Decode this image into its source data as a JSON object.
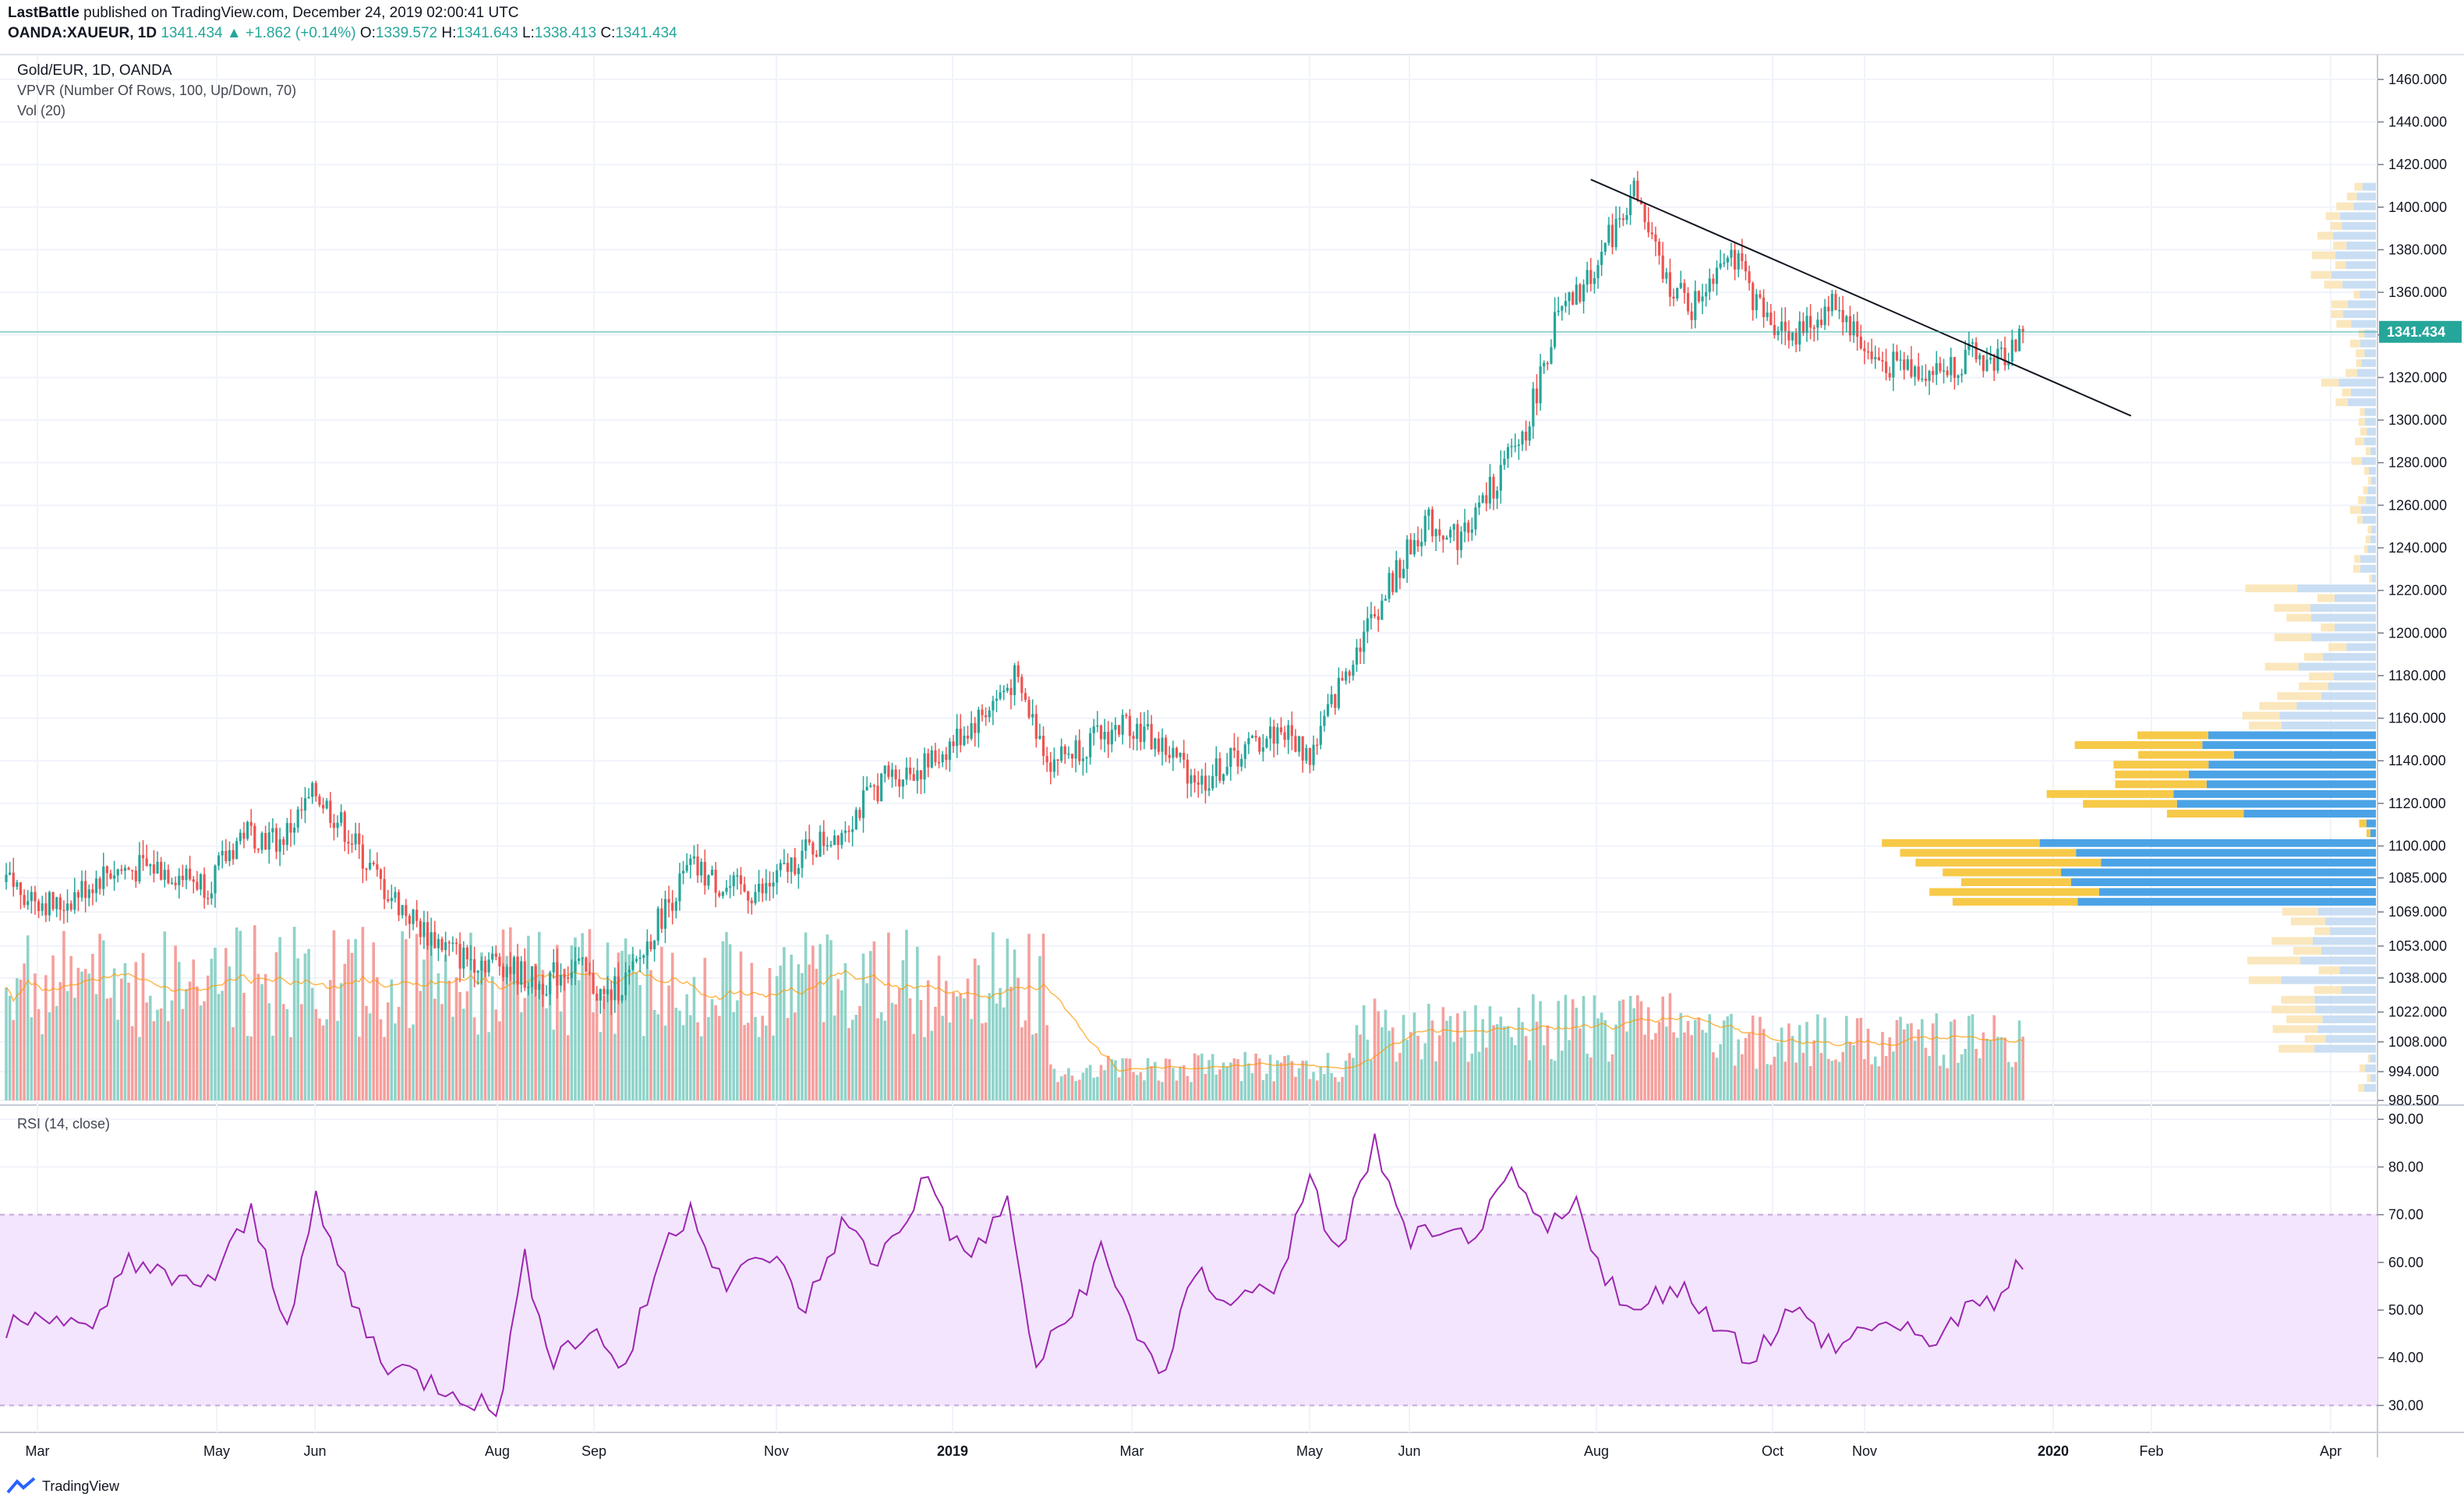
{
  "header": {
    "author": "LastBattle",
    "published_text": "published on TradingView.com, December 24, 2019 02:00:41 UTC",
    "symbol": "OANDA:XAUEUR, 1D",
    "last": "1341.434",
    "change": "▲ +1.862 (+0.14%)",
    "o_label": "O:",
    "o": "1339.572",
    "h_label": "H:",
    "h": "1341.643",
    "l_label": "L:",
    "l": "1338.413",
    "c_label": "C:",
    "c": "1341.434"
  },
  "legend": {
    "title": "Gold/EUR, 1D, OANDA",
    "vpvr": "VPVR (Number Of Rows, 100, Up/Down, 70)",
    "vol": "Vol (20)",
    "rsi": "RSI (14, close)"
  },
  "footer": {
    "brand": "TradingView"
  },
  "colors": {
    "up": "#26a69a",
    "down": "#ef5350",
    "vol_up": "#8fd3c9",
    "vol_down": "#f5a09d",
    "vpvr_up": "#4ba3e6",
    "vpvr_down": "#f7c948",
    "rsi": "#9c27b0",
    "rsi_band": "#f3e5fd",
    "price_line": "#26a69a"
  },
  "chart_data": {
    "type": "candlestick",
    "title": "Gold/EUR, 1D, OANDA",
    "price_axis": {
      "ylim": [
        980.5,
        1468
      ],
      "ticks": [
        "1460.000",
        "1440.000",
        "1420.000",
        "1400.000",
        "1380.000",
        "1360.000",
        "1340.000",
        "1320.000",
        "1300.000",
        "1280.000",
        "1260.000",
        "1240.000",
        "1220.000",
        "1200.000",
        "1180.000",
        "1160.000",
        "1140.000",
        "1120.000",
        "1100.000",
        "1085.000",
        "1069.000",
        "1053.000",
        "1038.000",
        "1022.000",
        "1008.000",
        "994.000",
        "980.500"
      ],
      "last_price_label": "1341.434",
      "last_price": 1341.434
    },
    "x_axis": {
      "labels": [
        "Mar",
        "May",
        "Jun",
        "Aug",
        "Sep",
        "Nov",
        "2019",
        "Mar",
        "May",
        "Jun",
        "Aug",
        "Oct",
        "Nov",
        "2020",
        "Feb",
        "Apr"
      ]
    },
    "price_path": [
      {
        "t": 0,
        "v": 1083
      },
      {
        "t": 14,
        "v": 1071
      },
      {
        "t": 28,
        "v": 1088
      },
      {
        "t": 42,
        "v": 1090
      },
      {
        "t": 56,
        "v": 1082
      },
      {
        "t": 66,
        "v": 1107
      },
      {
        "t": 76,
        "v": 1102
      },
      {
        "t": 86,
        "v": 1125
      },
      {
        "t": 94,
        "v": 1108
      },
      {
        "t": 104,
        "v": 1082
      },
      {
        "t": 116,
        "v": 1060
      },
      {
        "t": 126,
        "v": 1048
      },
      {
        "t": 138,
        "v": 1045
      },
      {
        "t": 148,
        "v": 1035
      },
      {
        "t": 158,
        "v": 1045
      },
      {
        "t": 166,
        "v": 1028
      },
      {
        "t": 174,
        "v": 1040
      },
      {
        "t": 182,
        "v": 1068
      },
      {
        "t": 190,
        "v": 1090
      },
      {
        "t": 200,
        "v": 1080
      },
      {
        "t": 210,
        "v": 1078
      },
      {
        "t": 220,
        "v": 1095
      },
      {
        "t": 232,
        "v": 1108
      },
      {
        "t": 244,
        "v": 1132
      },
      {
        "t": 256,
        "v": 1138
      },
      {
        "t": 270,
        "v": 1160
      },
      {
        "t": 280,
        "v": 1178
      },
      {
        "t": 290,
        "v": 1140
      },
      {
        "t": 300,
        "v": 1148
      },
      {
        "t": 312,
        "v": 1158
      },
      {
        "t": 322,
        "v": 1145
      },
      {
        "t": 332,
        "v": 1130
      },
      {
        "t": 344,
        "v": 1145
      },
      {
        "t": 354,
        "v": 1155
      },
      {
        "t": 362,
        "v": 1142
      },
      {
        "t": 374,
        "v": 1190
      },
      {
        "t": 384,
        "v": 1222
      },
      {
        "t": 394,
        "v": 1252
      },
      {
        "t": 404,
        "v": 1245
      },
      {
        "t": 414,
        "v": 1272
      },
      {
        "t": 422,
        "v": 1296
      },
      {
        "t": 430,
        "v": 1345
      },
      {
        "t": 438,
        "v": 1362
      },
      {
        "t": 446,
        "v": 1388
      },
      {
        "t": 452,
        "v": 1408
      },
      {
        "t": 460,
        "v": 1368
      },
      {
        "t": 468,
        "v": 1352
      },
      {
        "t": 478,
        "v": 1382
      },
      {
        "t": 488,
        "v": 1348
      },
      {
        "t": 498,
        "v": 1340
      },
      {
        "t": 508,
        "v": 1356
      },
      {
        "t": 518,
        "v": 1328
      },
      {
        "t": 526,
        "v": 1326
      },
      {
        "t": 536,
        "v": 1322
      },
      {
        "t": 546,
        "v": 1330
      },
      {
        "t": 552,
        "v": 1326
      },
      {
        "t": 560,
        "v": 1341
      }
    ],
    "volume_series": {
      "name": "Vol (20)",
      "regimes": [
        {
          "from": 0,
          "to": 290,
          "level": "high"
        },
        {
          "from": 290,
          "to": 375,
          "level": "low"
        },
        {
          "from": 375,
          "to": 470,
          "level": "medium"
        },
        {
          "from": 470,
          "to": 560,
          "level": "medium-low"
        }
      ]
    },
    "vpvr_series": {
      "name": "VPVR (Number Of Rows, 100, Up/Down, 70)",
      "peak_price_zone": [
        1069,
        1100
      ],
      "secondary_zone": [
        1110,
        1150
      ]
    },
    "rsi": {
      "label": "RSI (14, close)",
      "ylim": [
        25,
        92
      ],
      "ticks": [
        "90.00",
        "80.00",
        "70.00",
        "60.00",
        "50.00",
        "40.00",
        "30.00"
      ],
      "band": [
        30,
        70
      ],
      "path": [
        {
          "t": 0,
          "v": 46
        },
        {
          "t": 12,
          "v": 50
        },
        {
          "t": 24,
          "v": 44
        },
        {
          "t": 34,
          "v": 62
        },
        {
          "t": 46,
          "v": 55
        },
        {
          "t": 58,
          "v": 57
        },
        {
          "t": 68,
          "v": 70
        },
        {
          "t": 78,
          "v": 48
        },
        {
          "t": 86,
          "v": 72
        },
        {
          "t": 96,
          "v": 52
        },
        {
          "t": 104,
          "v": 40
        },
        {
          "t": 114,
          "v": 36
        },
        {
          "t": 126,
          "v": 33
        },
        {
          "t": 136,
          "v": 28
        },
        {
          "t": 144,
          "v": 60
        },
        {
          "t": 152,
          "v": 40
        },
        {
          "t": 162,
          "v": 46
        },
        {
          "t": 172,
          "v": 38
        },
        {
          "t": 182,
          "v": 62
        },
        {
          "t": 190,
          "v": 72
        },
        {
          "t": 200,
          "v": 55
        },
        {
          "t": 212,
          "v": 62
        },
        {
          "t": 222,
          "v": 50
        },
        {
          "t": 232,
          "v": 68
        },
        {
          "t": 242,
          "v": 60
        },
        {
          "t": 256,
          "v": 78
        },
        {
          "t": 266,
          "v": 60
        },
        {
          "t": 278,
          "v": 72
        },
        {
          "t": 286,
          "v": 38
        },
        {
          "t": 296,
          "v": 50
        },
        {
          "t": 304,
          "v": 62
        },
        {
          "t": 312,
          "v": 48
        },
        {
          "t": 322,
          "v": 36
        },
        {
          "t": 330,
          "v": 58
        },
        {
          "t": 340,
          "v": 52
        },
        {
          "t": 352,
          "v": 55
        },
        {
          "t": 362,
          "v": 76
        },
        {
          "t": 370,
          "v": 62
        },
        {
          "t": 380,
          "v": 85
        },
        {
          "t": 388,
          "v": 66
        },
        {
          "t": 400,
          "v": 64
        },
        {
          "t": 410,
          "v": 68
        },
        {
          "t": 418,
          "v": 77
        },
        {
          "t": 428,
          "v": 66
        },
        {
          "t": 436,
          "v": 72
        },
        {
          "t": 444,
          "v": 58
        },
        {
          "t": 452,
          "v": 48
        },
        {
          "t": 462,
          "v": 56
        },
        {
          "t": 472,
          "v": 50
        },
        {
          "t": 484,
          "v": 40
        },
        {
          "t": 496,
          "v": 50
        },
        {
          "t": 508,
          "v": 42
        },
        {
          "t": 520,
          "v": 48
        },
        {
          "t": 532,
          "v": 43
        },
        {
          "t": 542,
          "v": 48
        },
        {
          "t": 552,
          "v": 52
        },
        {
          "t": 560,
          "v": 60
        }
      ]
    },
    "trendline": {
      "from": {
        "t": 440,
        "v": 1413
      },
      "to": {
        "t": 590,
        "v": 1302
      }
    }
  }
}
